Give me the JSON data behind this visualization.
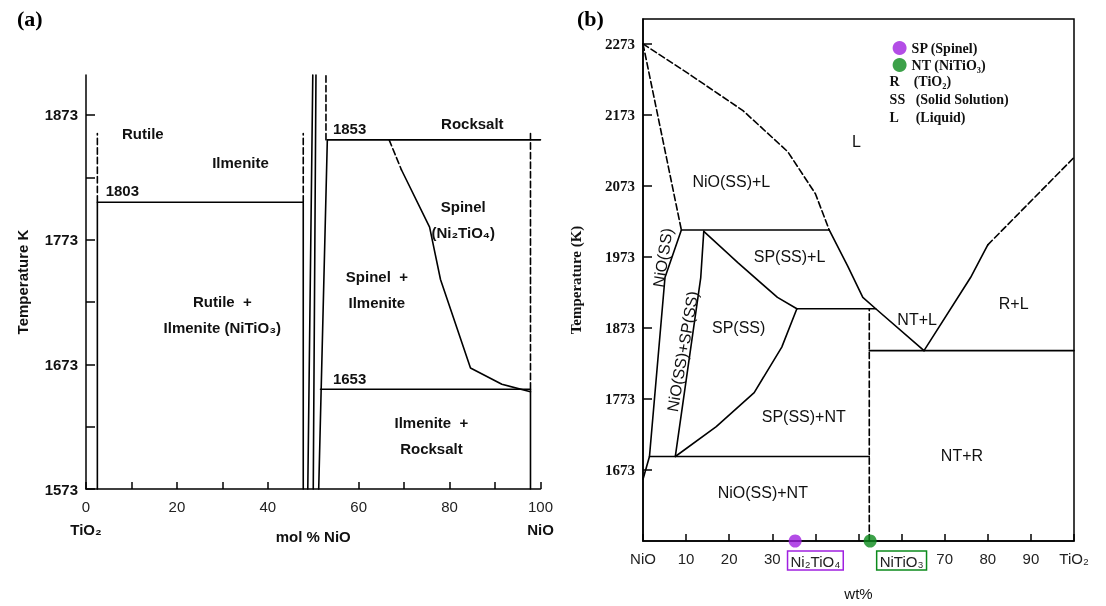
{
  "chart_data": [
    {
      "type": "line",
      "title": "(a)",
      "xlabel": "mol % NiO",
      "ylabel": "Temperature K",
      "xlim": [
        0,
        100
      ],
      "ylim": [
        1573,
        1905
      ],
      "xticks": [
        0,
        {
          "value": 10,
          "label": null
        },
        20,
        {
          "value": 30,
          "label": null
        },
        40,
        60,
        {
          "value": 70,
          "label": null
        },
        80,
        {
          "value": 90,
          "label": null
        },
        100
      ],
      "yticks": [
        1573,
        {
          "value": 1623,
          "label": null
        },
        1673,
        {
          "value": 1723,
          "label": null
        },
        1773,
        {
          "value": 1823,
          "label": null
        },
        1873
      ],
      "marker": "none",
      "line_style": "solid",
      "legend": false,
      "series": [
        {
          "color": "#000000",
          "x": [
            2.5,
            2.5,
            47.8,
            47.8
          ],
          "values": [
            1573,
            1803,
            1803,
            1573
          ]
        },
        {
          "color": "#000000",
          "line_style": "dashed",
          "x": [
            2.5,
            2.5
          ],
          "values": [
            1803,
            1858
          ]
        },
        {
          "color": "#000000",
          "line_style": "dashed",
          "x": [
            47.8,
            47.8
          ],
          "values": [
            1803,
            1858
          ]
        },
        {
          "color": "#000000",
          "x": [
            48.8,
            49.9
          ],
          "values": [
            1573,
            1905
          ]
        },
        {
          "color": "#000000",
          "x": [
            50,
            50.6
          ],
          "values": [
            1573,
            1905
          ]
        },
        {
          "color": "#000000",
          "x": [
            51.2,
            53.1
          ],
          "values": [
            1573,
            1853
          ]
        },
        {
          "color": "#000000",
          "line_style": "dashed",
          "x": [
            52.8,
            52.8
          ],
          "values": [
            1853,
            1905
          ]
        },
        {
          "color": "#000000",
          "x": [
            53.1,
            100
          ],
          "values": [
            1853,
            1853
          ]
        },
        {
          "color": "#000000",
          "x": [
            51.6,
            97.8,
            97.8
          ],
          "values": [
            1653,
            1653,
            1573
          ]
        },
        {
          "color": "#000000",
          "line_style": "dashed",
          "x": [
            97.8,
            97.8
          ],
          "values": [
            1653,
            1858
          ]
        },
        {
          "color": "#000000",
          "line_style": "dashed",
          "x": [
            66.7,
            69.4
          ],
          "values": [
            1853,
            1829
          ]
        },
        {
          "color": "#000000",
          "x": [
            69.4,
            75.6,
            78,
            84.6,
            91.5,
            97.8
          ],
          "values": [
            1829,
            1783,
            1741,
            1670,
            1657,
            1651
          ]
        }
      ],
      "annotations": [
        "1803",
        "1853",
        "1653",
        "Rutile",
        "Ilmenite",
        "Rocksalt",
        "Spinel\n(Ni₂TiO₄)",
        "Spinel  +\nIlmenite",
        "Rutile  +\nIlmenite (NiTiO₃)",
        "Ilmenite  +\nRocksalt",
        "TiO₂",
        "NiO"
      ]
    },
    {
      "type": "line",
      "title": "(b)",
      "xlabel": "wt%",
      "ylabel": "Temperature (K)",
      "xlim": [
        0,
        100
      ],
      "ylim": [
        1573,
        2308
      ],
      "xticks": [
        {
          "value": 0,
          "label": "NiO"
        },
        10,
        20,
        30,
        {
          "value": 40,
          "label": "Ni₂TiO₄"
        },
        {
          "value": 50,
          "label": null
        },
        {
          "value": 60,
          "label": "NiTiO₃"
        },
        70,
        80,
        90,
        {
          "value": 100,
          "label": "TiO₂"
        }
      ],
      "yticks": [
        1673,
        1773,
        1873,
        1973,
        2073,
        2173,
        2273
      ],
      "marker": "none",
      "line_style": "solid",
      "legend": "top right",
      "series": [
        {
          "color": "#000000",
          "line_style": "dashed",
          "x": [
            0,
            11.3,
            23.2,
            33.6,
            40,
            43.2
          ],
          "values": [
            2273,
            2228,
            2179,
            2121,
            2062,
            2011
          ]
        },
        {
          "color": "#000000",
          "line_style": "dashed",
          "x": [
            0,
            8.9
          ],
          "values": [
            2273,
            2011
          ]
        },
        {
          "color": "#000000",
          "x": [
            8.9,
            43.2
          ],
          "values": [
            2011,
            2011
          ]
        },
        {
          "color": "#000000",
          "x": [
            43.2,
            47.5,
            51,
            54,
            65.2
          ],
          "values": [
            2011,
            1960,
            1916,
            1900,
            1841
          ]
        },
        {
          "color": "#000000",
          "x": [
            0,
            1.5,
            5.1,
            8.9
          ],
          "values": [
            1660,
            1692,
            1944,
            2011
          ]
        },
        {
          "color": "#000000",
          "x": [
            7.5,
            13.4,
            14.1
          ],
          "values": [
            1692,
            1944,
            2009
          ]
        },
        {
          "color": "#000000",
          "x": [
            14.1,
            22,
            31.2,
            35.7
          ],
          "values": [
            2009,
            1965,
            1916,
            1900
          ]
        },
        {
          "color": "#000000",
          "x": [
            7.5,
            17,
            25.8,
            32.2,
            35.7
          ],
          "values": [
            1692,
            1734,
            1782,
            1846,
            1900
          ]
        },
        {
          "color": "#000000",
          "x": [
            35.7,
            54
          ],
          "values": [
            1900,
            1900
          ]
        },
        {
          "color": "#000000",
          "x": [
            1.5,
            52.5
          ],
          "values": [
            1692,
            1692
          ]
        },
        {
          "color": "#000000",
          "line_style": "dashed",
          "x": [
            52.5,
            52.5
          ],
          "values": [
            1573,
            1900
          ]
        },
        {
          "color": "#000000",
          "x": [
            52.5,
            100
          ],
          "values": [
            1841,
            1841
          ]
        },
        {
          "color": "#000000",
          "x": [
            65.2,
            76,
            80
          ],
          "values": [
            1841,
            1944,
            1990
          ]
        },
        {
          "color": "#000000",
          "line_style": "dashed",
          "x": [
            80,
            100
          ],
          "values": [
            1990,
            2113
          ]
        },
        {
          "type": "scatter",
          "marker": "circle",
          "name": "SP (Spinel)",
          "color": "#a020e0",
          "x": [
            35.3
          ],
          "values": [
            1573
          ]
        },
        {
          "type": "scatter",
          "marker": "circle",
          "name": "NT (NiTiO₃)",
          "color": "#0b8a1b",
          "x": [
            52.7
          ],
          "values": [
            1573
          ]
        }
      ],
      "annotations": [
        "L",
        "NiO(SS)+L",
        "SP(SS)+L",
        "NiO(SS)",
        "NiO(SS)+SP(SS)",
        "SP(SS)",
        "SP(SS)+NT",
        "NiO(SS)+NT",
        "NT+L",
        "R+L",
        "NT+R",
        "R    (TiO₂)",
        "SS   (Solid Solution)",
        "L     (Liquid)"
      ]
    }
  ]
}
